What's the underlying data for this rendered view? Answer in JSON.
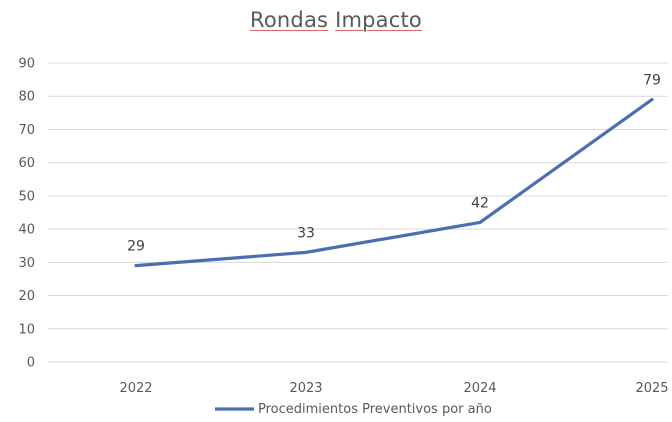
{
  "chart_data": {
    "type": "line",
    "title": "Rondas Impacto",
    "title_words": [
      "Rondas",
      "Impacto"
    ],
    "categories": [
      "2022",
      "2023",
      "2024",
      "2025"
    ],
    "series": [
      {
        "name": "Procedimientos Preventivos por año",
        "values": [
          29,
          33,
          42,
          79
        ],
        "color": "#4a6fb0"
      }
    ],
    "ylim": [
      0,
      90
    ],
    "yticks": [
      0,
      10,
      20,
      30,
      40,
      50,
      60,
      70,
      80,
      90
    ],
    "data_labels": [
      "29",
      "33",
      "42",
      "79"
    ],
    "xlabel": "",
    "ylabel": "",
    "grid": true,
    "gridline_color": "#d9d9d9",
    "legend": "bottom"
  }
}
